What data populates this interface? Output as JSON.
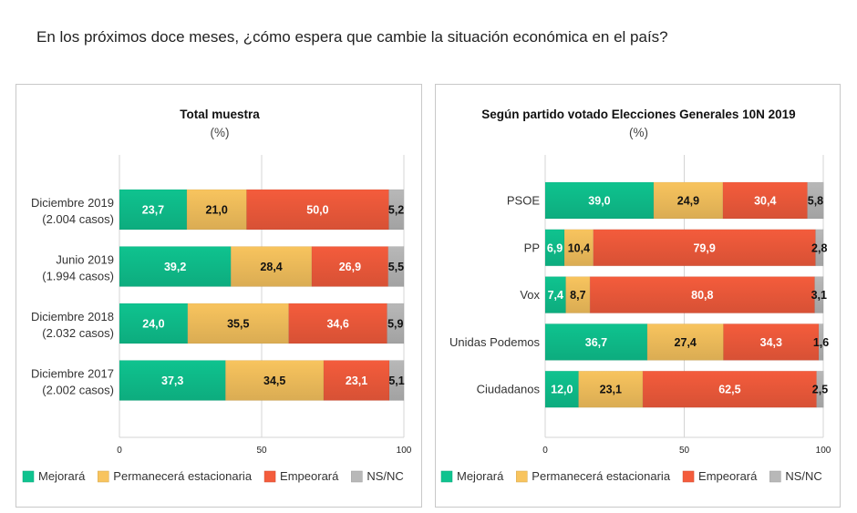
{
  "question": "En los próximos doce meses, ¿cómo espera que cambie la situación económica en el país?",
  "colors": {
    "Mejorará": "#0fc38f",
    "Permanecerá estacionaria": "#f8c45e",
    "Empeorará": "#f45c3c",
    "NS/NC": "#b8b8b8"
  },
  "chart_data": [
    {
      "type": "bar",
      "orientation": "horizontal",
      "stacked": true,
      "title": "Total muestra",
      "subtitle": "(%)",
      "categories": [
        [
          "Diciembre 2019",
          "(2.004 casos)"
        ],
        [
          "Junio 2019",
          "(1.994 casos)"
        ],
        [
          "Diciembre 2018",
          "(2.032 casos)"
        ],
        [
          "Diciembre 2017",
          "(2.002 casos)"
        ]
      ],
      "series": [
        {
          "name": "Mejorará",
          "values": [
            23.7,
            39.2,
            24.0,
            37.3
          ],
          "labels": [
            "23,7",
            "39,2",
            "24,0",
            "37,3"
          ]
        },
        {
          "name": "Permanecerá estacionaria",
          "values": [
            21.0,
            28.4,
            35.5,
            34.5
          ],
          "labels": [
            "21,0",
            "28,4",
            "35,5",
            "34,5"
          ]
        },
        {
          "name": "Empeorará",
          "values": [
            50.0,
            26.9,
            34.6,
            23.1
          ],
          "labels": [
            "50,0",
            "26,9",
            "34,6",
            "23,1"
          ]
        },
        {
          "name": "NS/NC",
          "values": [
            5.2,
            5.5,
            5.9,
            5.1
          ],
          "labels": [
            "5,2",
            "5,5",
            "5,9",
            "5,1"
          ]
        }
      ],
      "xlim": [
        0,
        100
      ],
      "xticks": [
        "0",
        "50",
        "100"
      ],
      "grid": true,
      "legend": "bottom"
    },
    {
      "type": "bar",
      "orientation": "horizontal",
      "stacked": true,
      "title": "Según partido votado Elecciones Generales 10N 2019",
      "subtitle": "(%)",
      "categories": [
        [
          "PSOE"
        ],
        [
          "PP"
        ],
        [
          "Vox"
        ],
        [
          "Unidas Podemos"
        ],
        [
          "Ciudadanos"
        ]
      ],
      "series": [
        {
          "name": "Mejorará",
          "values": [
            39.0,
            6.9,
            7.4,
            36.7,
            12.0
          ],
          "labels": [
            "39,0",
            "6,9",
            "7,4",
            "36,7",
            "12,0"
          ]
        },
        {
          "name": "Permanecerá estacionaria",
          "values": [
            24.9,
            10.4,
            8.7,
            27.4,
            23.1
          ],
          "labels": [
            "24,9",
            "10,4",
            "8,7",
            "27,4",
            "23,1"
          ]
        },
        {
          "name": "Empeorará",
          "values": [
            30.4,
            79.9,
            80.8,
            34.3,
            62.5
          ],
          "labels": [
            "30,4",
            "79,9",
            "80,8",
            "34,3",
            "62,5"
          ]
        },
        {
          "name": "NS/NC",
          "values": [
            5.8,
            2.8,
            3.1,
            1.6,
            2.5
          ],
          "labels": [
            "5,8",
            "2,8",
            "3,1",
            "1,6",
            "2,5"
          ]
        }
      ],
      "xlim": [
        0,
        100
      ],
      "xticks": [
        "0",
        "50",
        "100"
      ],
      "grid": true,
      "legend": "bottom"
    }
  ]
}
